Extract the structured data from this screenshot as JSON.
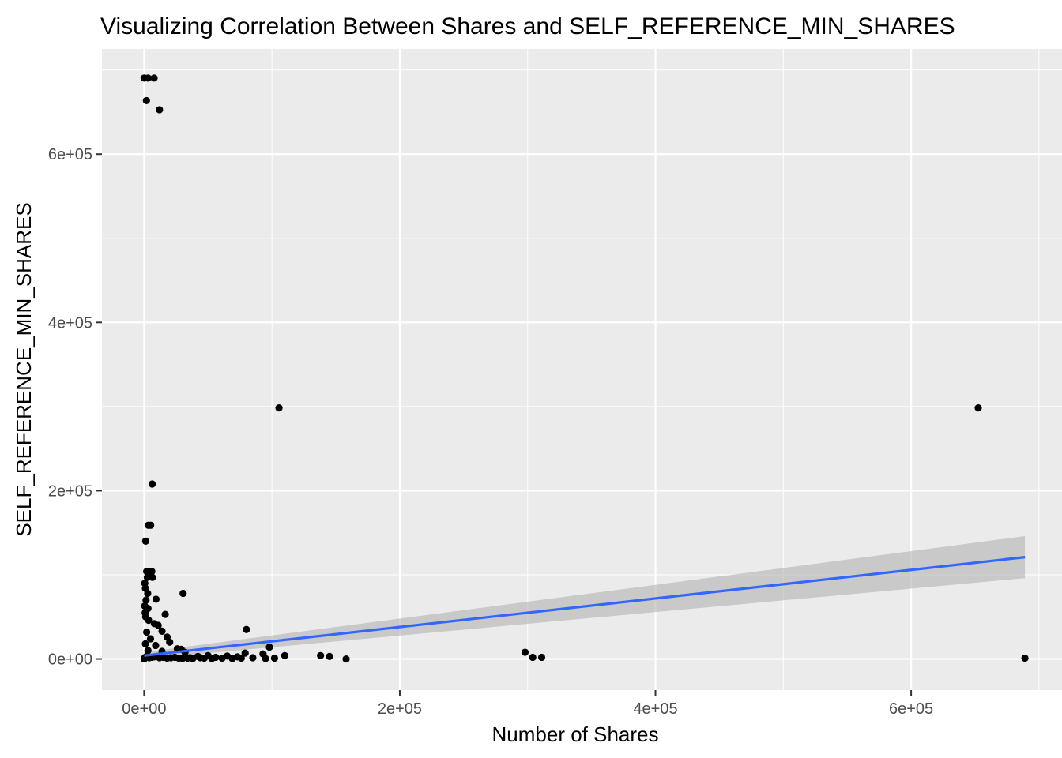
{
  "chart_data": {
    "type": "scatter",
    "title": "Visualizing Correlation Between Shares and SELF_REFERENCE_MIN_SHARES",
    "xlabel": "Number of Shares",
    "ylabel": "SELF_REFERENCE_MIN_SHARES",
    "xlim": [
      -33000,
      718000
    ],
    "ylim": [
      -37000,
      725000
    ],
    "x_ticks": [
      0,
      200000,
      400000,
      600000
    ],
    "x_tick_labels": [
      "0e+00",
      "2e+05",
      "4e+05",
      "6e+05"
    ],
    "y_ticks": [
      0,
      200000,
      400000,
      600000
    ],
    "y_tick_labels": [
      "0e+00",
      "2e+05",
      "4e+05",
      "6e+05"
    ],
    "grid": true,
    "legend": "none",
    "colors": {
      "panel_background": "#ebebeb",
      "grid": "#ffffff",
      "points": "#000000",
      "fit_line": "#3366ff",
      "confidence_band": "#b3b3b3"
    },
    "series": [
      {
        "type": "scatter",
        "points": [
          [
            0,
            690400
          ],
          [
            3000,
            690400
          ],
          [
            7800,
            690400
          ],
          [
            1800,
            663600
          ],
          [
            12000,
            652800
          ],
          [
            105500,
            298400
          ],
          [
            652500,
            298400
          ],
          [
            6300,
            207900
          ],
          [
            3300,
            158900
          ],
          [
            5100,
            158900
          ],
          [
            1200,
            140000
          ],
          [
            2000,
            104000
          ],
          [
            4500,
            104000
          ],
          [
            6000,
            104000
          ],
          [
            2500,
            97000
          ],
          [
            6500,
            97000
          ],
          [
            500,
            90000
          ],
          [
            1000,
            84000
          ],
          [
            2800,
            78000
          ],
          [
            30500,
            78000
          ],
          [
            9300,
            71000
          ],
          [
            1500,
            70000
          ],
          [
            500,
            63000
          ],
          [
            3000,
            60000
          ],
          [
            800,
            55000
          ],
          [
            16500,
            53000
          ],
          [
            1200,
            50000
          ],
          [
            3500,
            46000
          ],
          [
            8000,
            42000
          ],
          [
            11000,
            40000
          ],
          [
            80000,
            35000
          ],
          [
            14000,
            33000
          ],
          [
            2000,
            32000
          ],
          [
            18000,
            26000
          ],
          [
            5000,
            24000
          ],
          [
            20000,
            20000
          ],
          [
            1000,
            18000
          ],
          [
            9000,
            16000
          ],
          [
            98000,
            14000
          ],
          [
            26000,
            12000
          ],
          [
            29000,
            11500
          ],
          [
            3000,
            10000
          ],
          [
            14000,
            9000
          ],
          [
            32000,
            8000
          ],
          [
            298000,
            8000
          ],
          [
            79000,
            7000
          ],
          [
            93000,
            6000
          ],
          [
            110000,
            4000
          ],
          [
            138000,
            4000
          ],
          [
            145000,
            3000
          ],
          [
            50000,
            4000
          ],
          [
            65000,
            3500
          ],
          [
            42000,
            3000
          ],
          [
            56000,
            2000
          ],
          [
            73000,
            2500
          ],
          [
            36000,
            1500
          ],
          [
            47000,
            1000
          ],
          [
            61000,
            1000
          ],
          [
            85000,
            1500
          ],
          [
            102000,
            1000
          ],
          [
            95000,
            500
          ],
          [
            158000,
            0
          ],
          [
            304000,
            2000
          ],
          [
            311000,
            2000
          ],
          [
            689000,
            1000
          ],
          [
            0,
            0
          ],
          [
            500,
            1500
          ],
          [
            1500,
            2500
          ],
          [
            2500,
            3000
          ],
          [
            4000,
            1500
          ],
          [
            6000,
            2000
          ],
          [
            8000,
            2500
          ],
          [
            10000,
            3000
          ],
          [
            12000,
            1500
          ],
          [
            15000,
            2000
          ],
          [
            18000,
            1000
          ],
          [
            21000,
            1500
          ],
          [
            24000,
            2000
          ],
          [
            27000,
            1000
          ],
          [
            30000,
            500
          ],
          [
            34000,
            1000
          ],
          [
            38000,
            500
          ],
          [
            44000,
            1500
          ],
          [
            53000,
            500
          ],
          [
            69000,
            500
          ],
          [
            76000,
            1000
          ]
        ]
      },
      {
        "type": "line",
        "method": "linear fit",
        "points": [
          [
            0,
            4000
          ],
          [
            689000,
            121000
          ]
        ],
        "band_lower": [
          [
            0,
            0
          ],
          [
            689000,
            96000
          ]
        ],
        "band_upper": [
          [
            0,
            8000
          ],
          [
            689000,
            146000
          ]
        ]
      }
    ]
  }
}
